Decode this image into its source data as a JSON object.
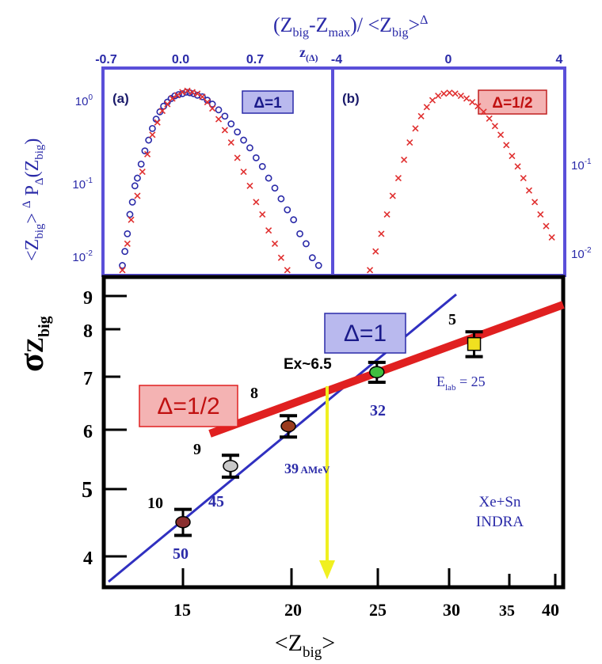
{
  "colors": {
    "frame_top": "#5a4fd9",
    "frame_bottom": "#000000",
    "blue_series": "#2a2aa8",
    "red_series": "#e03030",
    "line_delta_1": "#3030c0",
    "line_delta_half": "#e02020",
    "arrow": "#f0f020",
    "label_box_blue": "#b9b9ee",
    "label_box_red": "#f4b3b3"
  },
  "top_axis": {
    "title_html": "(Z<sub>big</sub>-Z<sub>max</sub>)/ <Z<sub>big</sub>>Δ",
    "title_main": "(Z",
    "title_sub1": "big",
    "title_mid1": "-Z",
    "title_sub2": "max",
    "title_mid2": ")/ <Z",
    "title_sub3": "big",
    "title_end": ">",
    "title_sup": "Δ",
    "z_label": "z",
    "z_sub": "(Δ)"
  },
  "left_axis": {
    "label_pre": "<Z",
    "label_sub": "big",
    "label_mid": "> ",
    "label_sup": "Δ",
    "label_p": " P",
    "label_psub": "Δ",
    "label_arg": "(Z",
    "label_argsub": "big",
    "label_end": ")"
  },
  "bottom_axis": {
    "label_pre": "<Z",
    "label_sub": "big",
    "label_end": ">"
  },
  "sigma_label": {
    "sigma": "σ",
    "z": "Z",
    "sub": "big"
  },
  "chart_data": [
    {
      "panel": "a",
      "type": "scatter",
      "panel_label": "(a)",
      "legend_box": "Δ=1",
      "xlabel": "(Zbig-Zmax)/ <Zbig>Δ",
      "x_tick_labels": [
        "-0.7",
        "0.0",
        "0.7"
      ],
      "xlim": [
        -0.75,
        1.05
      ],
      "y_scale": "log",
      "ylim": [
        0.006,
        2.2
      ],
      "y_tick_labels": [
        "10^0",
        "10^-1",
        "10^-2"
      ],
      "series": [
        {
          "marker": "circle",
          "color": "blue",
          "points": [
            [
              -0.62,
              0.008
            ],
            [
              -0.6,
              0.012
            ],
            [
              -0.58,
              0.02
            ],
            [
              -0.56,
              0.035
            ],
            [
              -0.54,
              0.05
            ],
            [
              -0.52,
              0.08
            ],
            [
              -0.5,
              0.1
            ],
            [
              -0.47,
              0.15
            ],
            [
              -0.44,
              0.22
            ],
            [
              -0.41,
              0.3
            ],
            [
              -0.38,
              0.42
            ],
            [
              -0.35,
              0.55
            ],
            [
              -0.32,
              0.68
            ],
            [
              -0.29,
              0.8
            ],
            [
              -0.26,
              0.9
            ],
            [
              -0.23,
              1.0
            ],
            [
              -0.2,
              1.08
            ],
            [
              -0.17,
              1.12
            ],
            [
              -0.14,
              1.15
            ],
            [
              -0.11,
              1.2
            ],
            [
              -0.08,
              1.18
            ],
            [
              -0.05,
              1.15
            ],
            [
              -0.02,
              1.1
            ],
            [
              0.02,
              1.05
            ],
            [
              0.06,
              0.95
            ],
            [
              0.1,
              0.85
            ],
            [
              0.15,
              0.72
            ],
            [
              0.2,
              0.6
            ],
            [
              0.25,
              0.48
            ],
            [
              0.3,
              0.38
            ],
            [
              0.35,
              0.3
            ],
            [
              0.4,
              0.24
            ],
            [
              0.45,
              0.18
            ],
            [
              0.5,
              0.14
            ],
            [
              0.55,
              0.1
            ],
            [
              0.6,
              0.075
            ],
            [
              0.65,
              0.055
            ],
            [
              0.7,
              0.04
            ],
            [
              0.75,
              0.03
            ],
            [
              0.8,
              0.02
            ],
            [
              0.85,
              0.015
            ],
            [
              0.9,
              0.01
            ],
            [
              0.95,
              0.008
            ]
          ]
        },
        {
          "marker": "x",
          "color": "red",
          "points": [
            [
              -0.62,
              0.007
            ],
            [
              -0.58,
              0.015
            ],
            [
              -0.55,
              0.03
            ],
            [
              -0.5,
              0.06
            ],
            [
              -0.46,
              0.12
            ],
            [
              -0.42,
              0.2
            ],
            [
              -0.38,
              0.35
            ],
            [
              -0.34,
              0.5
            ],
            [
              -0.3,
              0.7
            ],
            [
              -0.26,
              0.85
            ],
            [
              -0.22,
              1.0
            ],
            [
              -0.18,
              1.1
            ],
            [
              -0.14,
              1.2
            ],
            [
              -0.1,
              1.25
            ],
            [
              -0.06,
              1.2
            ],
            [
              -0.02,
              1.15
            ],
            [
              0.02,
              1.05
            ],
            [
              0.06,
              0.9
            ],
            [
              0.1,
              0.75
            ],
            [
              0.15,
              0.55
            ],
            [
              0.2,
              0.4
            ],
            [
              0.25,
              0.28
            ],
            [
              0.3,
              0.18
            ],
            [
              0.35,
              0.12
            ],
            [
              0.4,
              0.08
            ],
            [
              0.45,
              0.05
            ],
            [
              0.5,
              0.035
            ],
            [
              0.55,
              0.022
            ],
            [
              0.6,
              0.015
            ],
            [
              0.65,
              0.01
            ],
            [
              0.7,
              0.007
            ]
          ]
        }
      ]
    },
    {
      "panel": "b",
      "type": "scatter",
      "panel_label": "(b)",
      "legend_box": "Δ=1/2",
      "xlabel": "z(Δ)",
      "x_tick_labels": [
        "-4",
        "0",
        "4"
      ],
      "xlim": [
        -4,
        4
      ],
      "y_scale": "log",
      "ylim": [
        0.006,
        2.2
      ],
      "y_tick_labels": [
        "10^-1",
        "10^-2"
      ],
      "series": [
        {
          "marker": "x",
          "color": "red",
          "points": [
            [
              -2.8,
              0.007
            ],
            [
              -2.6,
              0.012
            ],
            [
              -2.4,
              0.02
            ],
            [
              -2.2,
              0.035
            ],
            [
              -2.0,
              0.06
            ],
            [
              -1.8,
              0.1
            ],
            [
              -1.6,
              0.17
            ],
            [
              -1.4,
              0.28
            ],
            [
              -1.2,
              0.42
            ],
            [
              -1.0,
              0.6
            ],
            [
              -0.8,
              0.78
            ],
            [
              -0.6,
              0.95
            ],
            [
              -0.4,
              1.08
            ],
            [
              -0.2,
              1.15
            ],
            [
              0.0,
              1.18
            ],
            [
              0.2,
              1.15
            ],
            [
              0.4,
              1.08
            ],
            [
              0.6,
              1.0
            ],
            [
              0.8,
              0.9
            ],
            [
              1.0,
              0.8
            ],
            [
              1.2,
              0.68
            ],
            [
              1.4,
              0.56
            ],
            [
              1.6,
              0.45
            ],
            [
              1.8,
              0.35
            ],
            [
              2.0,
              0.26
            ],
            [
              2.2,
              0.19
            ],
            [
              2.4,
              0.14
            ],
            [
              2.6,
              0.1
            ],
            [
              2.8,
              0.07
            ],
            [
              3.0,
              0.05
            ],
            [
              3.2,
              0.035
            ],
            [
              3.4,
              0.025
            ],
            [
              3.6,
              0.018
            ]
          ]
        }
      ]
    },
    {
      "panel": "c",
      "type": "scatter",
      "x_scale": "log",
      "y_scale": "log",
      "xlim": [
        11.5,
        42
      ],
      "ylim": [
        3.7,
        9.7
      ],
      "x_tick_labels": [
        "15",
        "20",
        "25",
        "30",
        "35",
        "40"
      ],
      "y_tick_labels": [
        "4",
        "5",
        "6",
        "7",
        "8",
        "9"
      ],
      "ylabel": "σZbig",
      "xlabel": "<Zbig>",
      "points": [
        {
          "x": 15.0,
          "y": 4.45,
          "err": 0.18,
          "color": "#8a2f2f",
          "marker": "circle",
          "label_top": "10",
          "label_bottom": "50"
        },
        {
          "x": 17.0,
          "y": 5.3,
          "err": 0.18,
          "color": "#c8c8c8",
          "marker": "circle",
          "label_top": "9",
          "label_bottom": "45"
        },
        {
          "x": 19.8,
          "y": 6.0,
          "err": 0.2,
          "color": "#9a3b1e",
          "marker": "circle",
          "label_top": "8",
          "label_bottom": "39 AMeV"
        },
        {
          "x": 25.0,
          "y": 7.1,
          "err": 0.22,
          "color": "#3fbf3f",
          "marker": "circle",
          "label_top": "",
          "label_bottom": "32"
        },
        {
          "x": 32.3,
          "y": 7.75,
          "err": 0.3,
          "color": "#f0e020",
          "marker": "square",
          "label_top": "5",
          "label_bottom": ""
        }
      ],
      "lines": [
        {
          "name": "Δ=1",
          "color": "blue",
          "from": [
            11.5,
            3.8
          ],
          "to": [
            42,
            13.0
          ]
        },
        {
          "name": "Δ=1/2",
          "color": "red",
          "from": [
            16.2,
            5.9
          ],
          "to": [
            42,
            8.65
          ]
        }
      ],
      "annotations": [
        {
          "text": "Ex~6.5",
          "note": "crossing of lines; yellow arrow points down to x≈22.3"
        },
        {
          "text": "Elab= 25",
          "note": "near point labelled 5"
        },
        {
          "text": "Xe+Sn",
          "note": "system"
        },
        {
          "text": "INDRA",
          "note": "detector"
        }
      ],
      "label_box_blue": "Δ=1",
      "label_box_red": "Δ=1/2"
    }
  ],
  "texts": {
    "ex_label": "Ex~6.5",
    "elab_main": "E",
    "elab_sub": "lab",
    "elab_val": " = 25",
    "system": "Xe+Sn",
    "detector": "INDRA",
    "box_delta1": "Δ=1",
    "box_delta_half": "Δ=1/2",
    "panel_a": "(a)",
    "panel_b": "(b)",
    "amev": "39",
    "amev_unit": " AMeV"
  }
}
